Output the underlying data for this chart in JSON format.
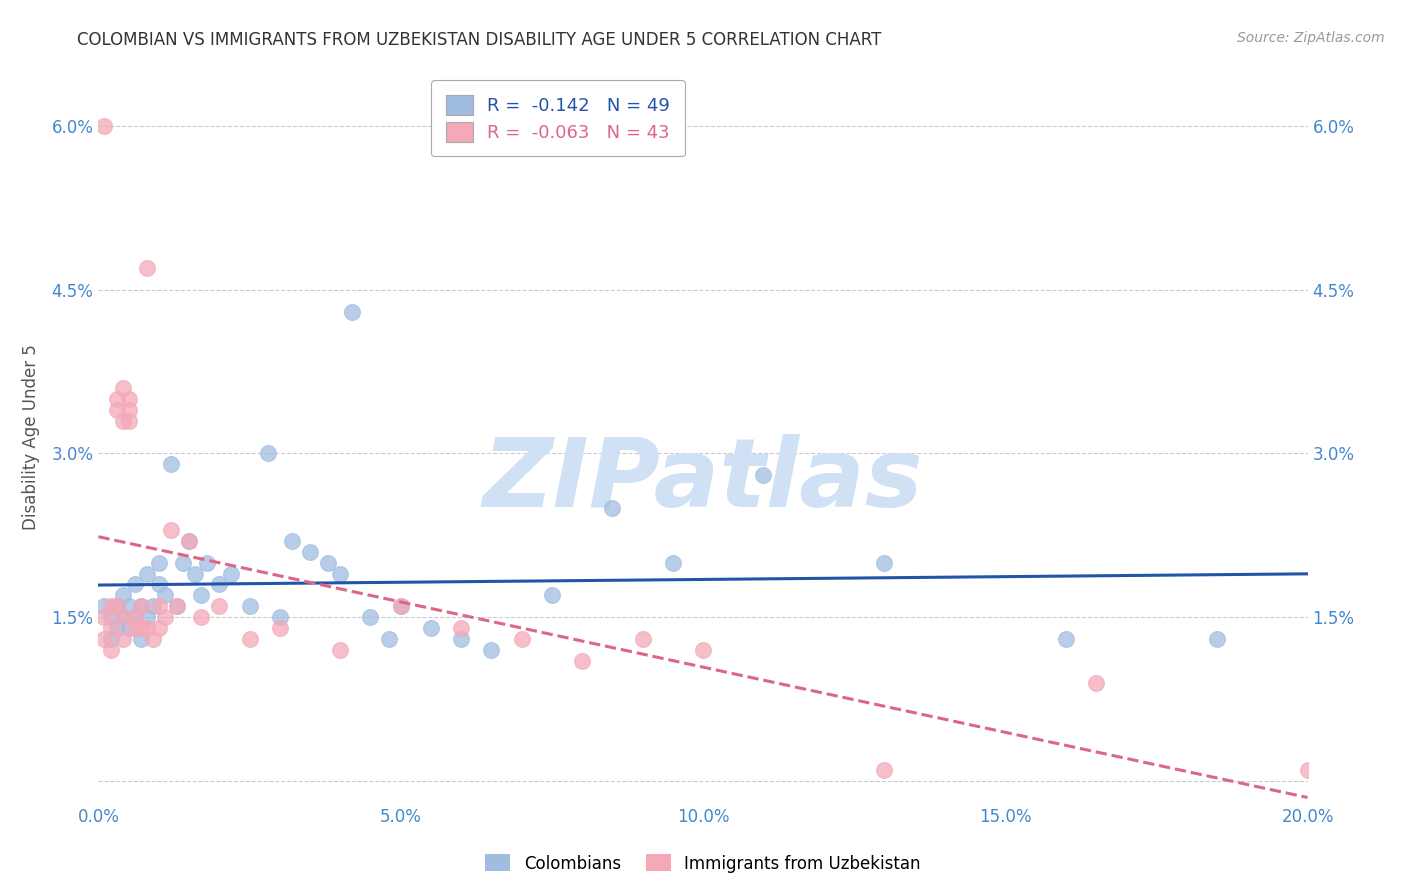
{
  "title": "COLOMBIAN VS IMMIGRANTS FROM UZBEKISTAN DISABILITY AGE UNDER 5 CORRELATION CHART",
  "source_text": "Source: ZipAtlas.com",
  "ylabel": "Disability Age Under 5",
  "xlim": [
    0.0,
    0.2
  ],
  "ylim": [
    -0.002,
    0.065
  ],
  "xticks": [
    0.0,
    0.05,
    0.1,
    0.15,
    0.2
  ],
  "xtick_labels": [
    "0.0%",
    "5.0%",
    "10.0%",
    "15.0%",
    "20.0%"
  ],
  "yticks": [
    0.0,
    0.015,
    0.03,
    0.045,
    0.06
  ],
  "ytick_labels": [
    "",
    "1.5%",
    "3.0%",
    "4.5%",
    "6.0%"
  ],
  "blue_R": -0.142,
  "blue_N": 49,
  "pink_R": -0.063,
  "pink_N": 43,
  "blue_color": "#a0bde0",
  "pink_color": "#f4a8b8",
  "blue_line_color": "#2255aa",
  "pink_line_color": "#dd6688",
  "legend_label_blue": "Colombians",
  "legend_label_pink": "Immigrants from Uzbekistan",
  "watermark": "ZIPatlas",
  "watermark_color": "#d0e0f5",
  "blue_x": [
    0.001,
    0.002,
    0.002,
    0.003,
    0.003,
    0.004,
    0.004,
    0.005,
    0.005,
    0.006,
    0.006,
    0.007,
    0.007,
    0.008,
    0.008,
    0.009,
    0.01,
    0.01,
    0.011,
    0.012,
    0.013,
    0.014,
    0.015,
    0.016,
    0.017,
    0.018,
    0.02,
    0.022,
    0.025,
    0.028,
    0.03,
    0.032,
    0.035,
    0.038,
    0.04,
    0.042,
    0.045,
    0.048,
    0.05,
    0.055,
    0.06,
    0.065,
    0.075,
    0.085,
    0.095,
    0.11,
    0.13,
    0.16,
    0.185
  ],
  "blue_y": [
    0.016,
    0.013,
    0.015,
    0.016,
    0.014,
    0.017,
    0.015,
    0.016,
    0.014,
    0.015,
    0.018,
    0.013,
    0.016,
    0.019,
    0.015,
    0.016,
    0.018,
    0.02,
    0.017,
    0.029,
    0.016,
    0.02,
    0.022,
    0.019,
    0.017,
    0.02,
    0.018,
    0.019,
    0.016,
    0.03,
    0.015,
    0.022,
    0.021,
    0.02,
    0.019,
    0.043,
    0.015,
    0.013,
    0.016,
    0.014,
    0.013,
    0.012,
    0.017,
    0.025,
    0.02,
    0.028,
    0.02,
    0.013,
    0.013
  ],
  "pink_x": [
    0.001,
    0.001,
    0.001,
    0.002,
    0.002,
    0.002,
    0.003,
    0.003,
    0.003,
    0.004,
    0.004,
    0.004,
    0.004,
    0.005,
    0.005,
    0.005,
    0.006,
    0.006,
    0.007,
    0.007,
    0.008,
    0.008,
    0.009,
    0.01,
    0.01,
    0.011,
    0.012,
    0.013,
    0.015,
    0.017,
    0.02,
    0.025,
    0.03,
    0.04,
    0.05,
    0.06,
    0.07,
    0.08,
    0.09,
    0.1,
    0.13,
    0.165,
    0.2
  ],
  "pink_y": [
    0.06,
    0.015,
    0.013,
    0.014,
    0.016,
    0.012,
    0.016,
    0.034,
    0.035,
    0.036,
    0.015,
    0.033,
    0.013,
    0.035,
    0.034,
    0.033,
    0.015,
    0.014,
    0.016,
    0.014,
    0.014,
    0.047,
    0.013,
    0.016,
    0.014,
    0.015,
    0.023,
    0.016,
    0.022,
    0.015,
    0.016,
    0.013,
    0.014,
    0.012,
    0.016,
    0.014,
    0.013,
    0.011,
    0.013,
    0.012,
    0.001,
    0.009,
    0.001
  ],
  "background_color": "#ffffff",
  "grid_color": "#cccccc",
  "title_color": "#333333",
  "axis_label_color": "#555555",
  "tick_color": "#4488cc",
  "figsize": [
    14.06,
    8.92
  ],
  "dpi": 100
}
